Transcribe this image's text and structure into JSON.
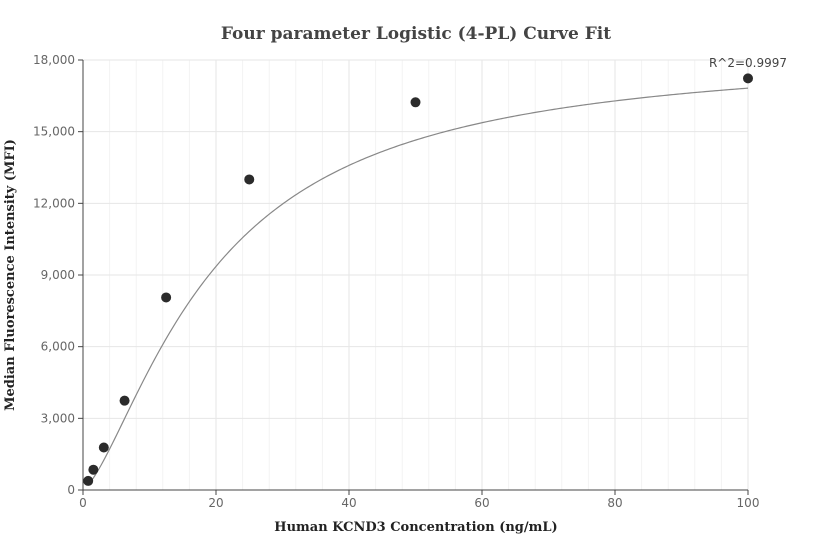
{
  "chart_data": {
    "type": "scatter",
    "title": "Four parameter Logistic (4-PL) Curve Fit",
    "xlabel": "Human KCND3 Concentration (ng/mL)",
    "ylabel": "Median Fluorescence Intensity (MFI)",
    "xlim": [
      0,
      100
    ],
    "ylim": [
      0,
      18000
    ],
    "xticks": [
      0,
      20,
      40,
      60,
      80,
      100
    ],
    "xtick_labels": [
      "0",
      "20",
      "40",
      "60",
      "80",
      "100"
    ],
    "yticks": [
      0,
      3000,
      6000,
      9000,
      12000,
      15000,
      18000
    ],
    "ytick_labels": [
      "0",
      "3,000",
      "6,000",
      "9,000",
      "12,000",
      "15,000",
      "18,000"
    ],
    "grid": true,
    "points": [
      {
        "x": 0.78,
        "y": 380
      },
      {
        "x": 1.56,
        "y": 850
      },
      {
        "x": 3.13,
        "y": 1780
      },
      {
        "x": 6.25,
        "y": 3740
      },
      {
        "x": 12.5,
        "y": 8060
      },
      {
        "x": 25,
        "y": 13000
      },
      {
        "x": 50,
        "y": 16230
      },
      {
        "x": 100,
        "y": 17230
      }
    ],
    "fit_curve": {
      "model": "4PL",
      "a": 50,
      "b": 1.45,
      "c": 19.6,
      "d": 18400
    },
    "annotation": "R^2=0.9997",
    "colors": {
      "points": "#2b2b2b",
      "curve": "#888888",
      "grid": "#e6e6e6",
      "axis": "#444444"
    }
  }
}
